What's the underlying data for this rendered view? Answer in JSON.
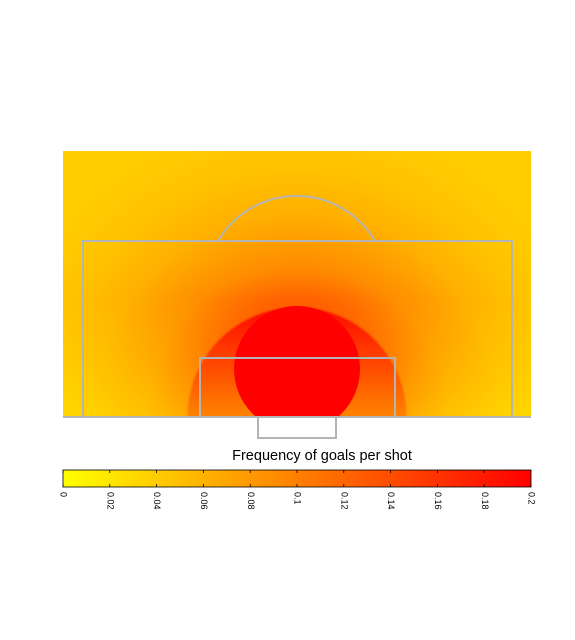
{
  "chart_data": {
    "type": "heatmap",
    "subject": "football pitch attacking third",
    "colorbar": {
      "label": "Frequency of goals per shot",
      "min": 0,
      "max": 0.2,
      "ticks": [
        "0",
        "0.02",
        "0.04",
        "0.06",
        "0.08",
        "0.1",
        "0.12",
        "0.14",
        "0.16",
        "0.18",
        "0.2"
      ],
      "colors": [
        "#ffff00",
        "#ff0000"
      ],
      "orientation": "horizontal",
      "placement": "bottom"
    },
    "field": {
      "background_value": 0.04,
      "peak_value": 0.2,
      "saturated_region": "circle centred at goal mouth reaching near penalty spot",
      "gradient": "value increases toward the goal"
    },
    "pitch_lines_color": "#b4b4b4"
  }
}
